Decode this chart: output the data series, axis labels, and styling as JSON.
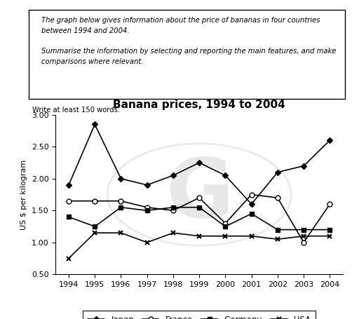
{
  "title": "Banana prices, 1994 to 2004",
  "ylabel": "US $ per kilogram",
  "years": [
    1994,
    1995,
    1996,
    1997,
    1998,
    1999,
    2000,
    2001,
    2002,
    2003,
    2004
  ],
  "japan": [
    1.9,
    2.85,
    2.0,
    1.9,
    2.05,
    2.25,
    2.05,
    1.6,
    2.1,
    2.2,
    2.6
  ],
  "france": [
    1.65,
    1.65,
    1.65,
    1.55,
    1.5,
    1.7,
    1.3,
    1.75,
    1.7,
    1.0,
    1.6
  ],
  "germany": [
    1.4,
    1.25,
    1.55,
    1.5,
    1.55,
    1.55,
    1.25,
    1.45,
    1.2,
    1.2,
    1.2
  ],
  "usa": [
    0.75,
    1.15,
    1.15,
    1.0,
    1.15,
    1.1,
    1.1,
    1.1,
    1.05,
    1.1,
    1.1
  ],
  "ylim": [
    0.5,
    3.0
  ],
  "yticks": [
    0.5,
    1.0,
    1.5,
    2.0,
    2.5,
    3.0
  ],
  "write_text": "Write at least 150 words.",
  "watermark_text": "G"
}
